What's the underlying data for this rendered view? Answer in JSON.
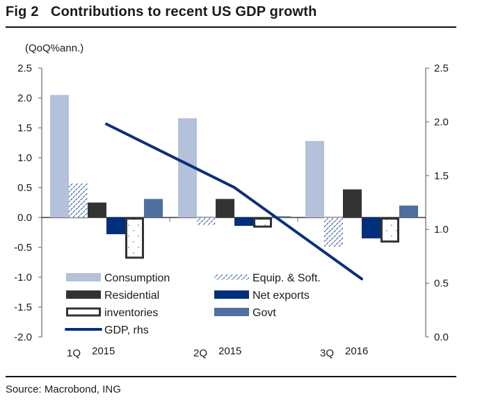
{
  "title": "Fig 2   Contributions to recent US GDP growth",
  "unit_label": "(QoQ%ann.)",
  "source": "Source: Macrobond, ING",
  "chart_data": {
    "type": "bar",
    "title": "Contributions to recent US GDP growth",
    "ylabel": "(QoQ%ann.)",
    "categories": [
      [
        "1Q",
        "2015"
      ],
      [
        "2Q",
        "2015"
      ],
      [
        "3Q",
        "2016"
      ]
    ],
    "left_axis": {
      "ylim": [
        -2.0,
        2.5
      ],
      "ticks": [
        2.5,
        2.0,
        1.5,
        1.0,
        0.5,
        0.0,
        -0.5,
        -1.0,
        -1.5,
        -2.0
      ],
      "tick_labels": [
        "2.5",
        "2.0",
        "1.5",
        "1.0",
        "0.5",
        "0.0",
        "-0.5",
        "-1.0",
        "-1.5",
        "-2.0"
      ]
    },
    "right_axis": {
      "ylim": [
        0.0,
        2.5
      ],
      "ticks": [
        2.5,
        2.0,
        1.5,
        1.0,
        0.5,
        0.0
      ],
      "tick_labels": [
        "2.5",
        "2.0",
        "1.5",
        "1.0",
        "0.5",
        "0.0"
      ]
    },
    "series": [
      {
        "name": "Consumption",
        "kind": "bar",
        "style": "solid",
        "color": "#b3c1da",
        "values": [
          2.05,
          1.66,
          1.28
        ]
      },
      {
        "name": "Equip. & Soft.",
        "kind": "bar",
        "style": "hatch",
        "color": "#1f4e9c",
        "values": [
          0.57,
          -0.13,
          -0.49
        ]
      },
      {
        "name": "Residential",
        "kind": "bar",
        "style": "solid",
        "color": "#333333",
        "values": [
          0.25,
          0.31,
          0.47
        ]
      },
      {
        "name": "Net exports",
        "kind": "bar",
        "style": "solid",
        "color": "#002f7c",
        "values": [
          -0.28,
          -0.14,
          -0.35
        ]
      },
      {
        "name": "inventories",
        "kind": "bar",
        "style": "outline-dots",
        "color": "#333333",
        "values": [
          -0.69,
          -0.17,
          -0.42
        ]
      },
      {
        "name": "Govt",
        "kind": "bar",
        "style": "solid",
        "color": "#4e6f9f",
        "values": [
          0.31,
          0.02,
          0.2
        ]
      },
      {
        "name": "GDP, rhs",
        "kind": "line",
        "axis": "right",
        "color": "#0a2f7a",
        "values": [
          1.98,
          1.39,
          0.54
        ]
      }
    ],
    "legend": {
      "placement": "bottom-left inside",
      "columns": 2
    },
    "grid": false
  }
}
